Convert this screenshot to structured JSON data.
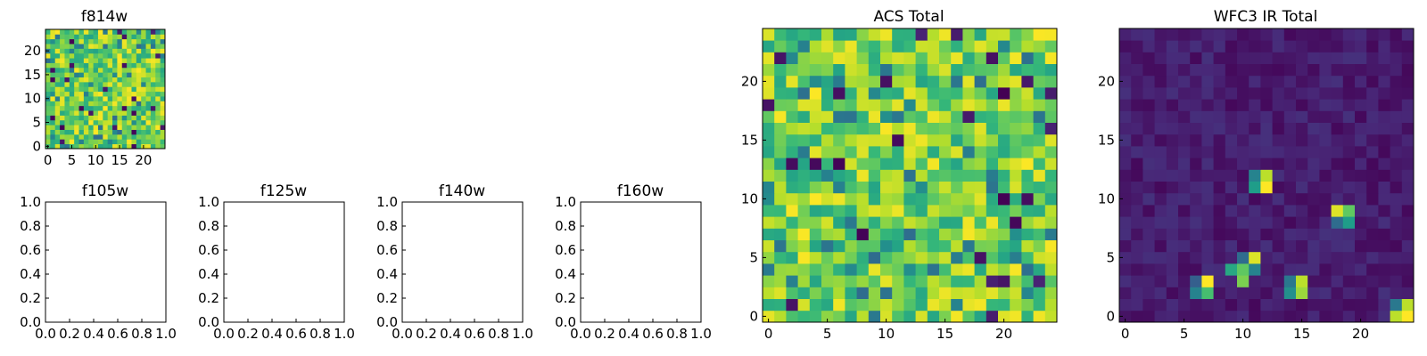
{
  "chart_data": [
    {
      "id": "f814w",
      "type": "heatmap",
      "title": "f814w",
      "grid_size": 25,
      "colormap": "viridis",
      "xticks": [
        "0",
        "5",
        "10",
        "15",
        "20"
      ],
      "yticks": [
        "0",
        "5",
        "10",
        "15",
        "20"
      ],
      "values": "random pixel noise, mostly green-yellow (viridis 0.6-1.0) with scattered dark pixels",
      "seed": 11
    },
    {
      "id": "f105w",
      "type": "empty",
      "title": "f105w",
      "xlim": [
        0,
        1
      ],
      "ylim": [
        0,
        1
      ],
      "xticks": [
        "0.0",
        "0.2",
        "0.4",
        "0.6",
        "0.8",
        "1.0"
      ],
      "yticks": [
        "0.0",
        "0.2",
        "0.4",
        "0.6",
        "0.8",
        "1.0"
      ]
    },
    {
      "id": "f125w",
      "type": "empty",
      "title": "f125w",
      "xlim": [
        0,
        1
      ],
      "ylim": [
        0,
        1
      ],
      "xticks": [
        "0.0",
        "0.2",
        "0.4",
        "0.6",
        "0.8",
        "1.0"
      ],
      "yticks": [
        "0.0",
        "0.2",
        "0.4",
        "0.6",
        "0.8",
        "1.0"
      ]
    },
    {
      "id": "f140w",
      "type": "empty",
      "title": "f140w",
      "xlim": [
        0,
        1
      ],
      "ylim": [
        0,
        1
      ],
      "xticks": [
        "0.0",
        "0.2",
        "0.4",
        "0.6",
        "0.8",
        "1.0"
      ],
      "yticks": [
        "0.0",
        "0.2",
        "0.4",
        "0.6",
        "0.8",
        "1.0"
      ]
    },
    {
      "id": "f160w",
      "type": "empty",
      "title": "f160w",
      "xlim": [
        0,
        1
      ],
      "ylim": [
        0,
        1
      ],
      "xticks": [
        "0.0",
        "0.2",
        "0.4",
        "0.6",
        "0.8",
        "1.0"
      ],
      "yticks": [
        "0.0",
        "0.2",
        "0.4",
        "0.6",
        "0.8",
        "1.0"
      ]
    },
    {
      "id": "acs_total",
      "type": "heatmap",
      "title": "ACS Total",
      "grid_size": 25,
      "colormap": "viridis",
      "xticks": [
        "0",
        "5",
        "10",
        "15",
        "20"
      ],
      "yticks": [
        "0",
        "5",
        "10",
        "15",
        "20"
      ],
      "values": "random pixel noise, mostly green-yellow (viridis 0.55-1.0) with scattered dark pixels",
      "seed": 29
    },
    {
      "id": "wfc3_ir_total",
      "type": "heatmap",
      "title": "WFC3 IR Total",
      "grid_size": 25,
      "colormap": "viridis",
      "xticks": [
        "0",
        "5",
        "10",
        "15",
        "20"
      ],
      "yticks": [
        "0",
        "5",
        "10",
        "15",
        "20"
      ],
      "values": "dark purple background with a few bright sources",
      "bright_pixels": [
        {
          "x": 11,
          "y": 11,
          "v": 0.55
        },
        {
          "x": 12,
          "y": 11,
          "v": 1.0
        },
        {
          "x": 11,
          "y": 12,
          "v": 0.45
        },
        {
          "x": 12,
          "y": 12,
          "v": 0.9
        },
        {
          "x": 18,
          "y": 9,
          "v": 0.95
        },
        {
          "x": 19,
          "y": 9,
          "v": 0.75
        },
        {
          "x": 18,
          "y": 8,
          "v": 0.35
        },
        {
          "x": 19,
          "y": 8,
          "v": 0.55
        },
        {
          "x": 10,
          "y": 5,
          "v": 0.35
        },
        {
          "x": 11,
          "y": 5,
          "v": 0.95
        },
        {
          "x": 9,
          "y": 4,
          "v": 0.6
        },
        {
          "x": 10,
          "y": 4,
          "v": 0.75
        },
        {
          "x": 11,
          "y": 4,
          "v": 0.45
        },
        {
          "x": 10,
          "y": 3,
          "v": 0.8
        },
        {
          "x": 6,
          "y": 3,
          "v": 0.3
        },
        {
          "x": 7,
          "y": 3,
          "v": 1.0
        },
        {
          "x": 6,
          "y": 2,
          "v": 0.45
        },
        {
          "x": 7,
          "y": 2,
          "v": 0.7
        },
        {
          "x": 14,
          "y": 3,
          "v": 0.4
        },
        {
          "x": 15,
          "y": 3,
          "v": 0.9
        },
        {
          "x": 14,
          "y": 2,
          "v": 0.5
        },
        {
          "x": 15,
          "y": 2,
          "v": 0.85
        },
        {
          "x": 23,
          "y": 1,
          "v": 0.4
        },
        {
          "x": 24,
          "y": 1,
          "v": 0.9
        },
        {
          "x": 23,
          "y": 0,
          "v": 0.9
        },
        {
          "x": 24,
          "y": 0,
          "v": 1.0
        }
      ],
      "seed": 53
    }
  ]
}
